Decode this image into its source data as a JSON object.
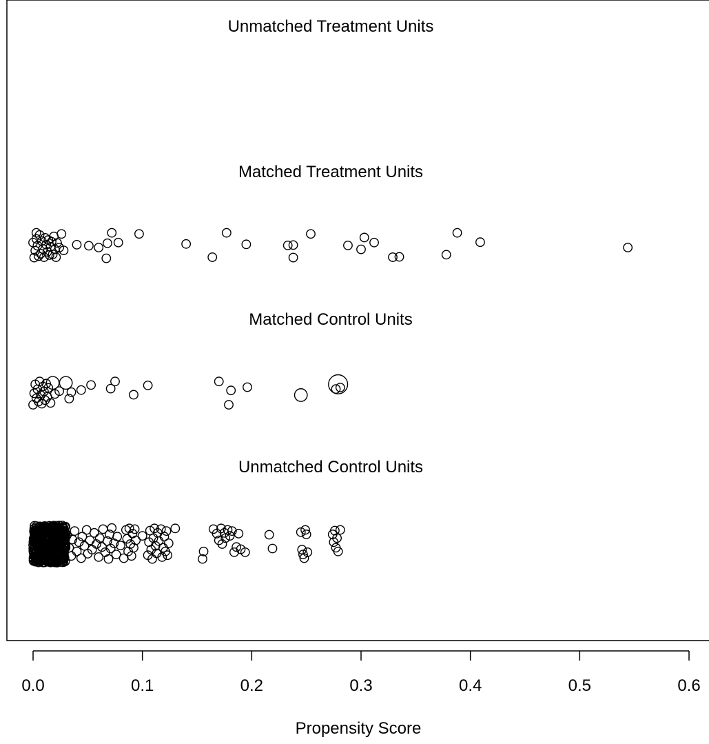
{
  "chart_data": {
    "type": "scatter",
    "title": "",
    "xlabel": "Propensity Score",
    "ylabel": "",
    "xlim": [
      0.0,
      0.6
    ],
    "xticks": [
      0.0,
      0.1,
      0.2,
      0.3,
      0.4,
      0.5,
      0.6
    ],
    "xtick_labels": [
      "0.0",
      "0.1",
      "0.2",
      "0.3",
      "0.4",
      "0.5",
      "0.6"
    ],
    "grid": false,
    "jittered_points": true,
    "point_style": "open-circle",
    "groups": [
      {
        "name": "Unmatched Treatment Units",
        "points": []
      },
      {
        "name": "Matched Treatment Units",
        "points": [
          {
            "x": 0.0,
            "y": 0.64,
            "w": 1
          },
          {
            "x": 0.001,
            "y": 0.22,
            "w": 1
          },
          {
            "x": 0.002,
            "y": 0.41,
            "w": 1
          },
          {
            "x": 0.003,
            "y": 0.74,
            "w": 1
          },
          {
            "x": 0.003,
            "y": 0.91,
            "w": 1
          },
          {
            "x": 0.004,
            "y": 0.55,
            "w": 1
          },
          {
            "x": 0.005,
            "y": 0.26,
            "w": 1
          },
          {
            "x": 0.006,
            "y": 0.85,
            "w": 1
          },
          {
            "x": 0.007,
            "y": 0.33,
            "w": 1
          },
          {
            "x": 0.008,
            "y": 0.68,
            "w": 1
          },
          {
            "x": 0.009,
            "y": 0.46,
            "w": 1
          },
          {
            "x": 0.01,
            "y": 0.23,
            "w": 1
          },
          {
            "x": 0.011,
            "y": 0.77,
            "w": 1
          },
          {
            "x": 0.012,
            "y": 0.58,
            "w": 1
          },
          {
            "x": 0.013,
            "y": 0.38,
            "w": 1
          },
          {
            "x": 0.014,
            "y": 0.71,
            "w": 1
          },
          {
            "x": 0.015,
            "y": 0.29,
            "w": 1
          },
          {
            "x": 0.016,
            "y": 0.52,
            "w": 1
          },
          {
            "x": 0.017,
            "y": 0.66,
            "w": 1
          },
          {
            "x": 0.018,
            "y": 0.31,
            "w": 1
          },
          {
            "x": 0.019,
            "y": 0.81,
            "w": 1
          },
          {
            "x": 0.02,
            "y": 0.45,
            "w": 1
          },
          {
            "x": 0.021,
            "y": 0.23,
            "w": 1
          },
          {
            "x": 0.022,
            "y": 0.63,
            "w": 1
          },
          {
            "x": 0.024,
            "y": 0.5,
            "w": 1
          },
          {
            "x": 0.026,
            "y": 0.88,
            "w": 1
          },
          {
            "x": 0.028,
            "y": 0.42,
            "w": 1
          },
          {
            "x": 0.04,
            "y": 0.58,
            "w": 1
          },
          {
            "x": 0.051,
            "y": 0.55,
            "w": 1
          },
          {
            "x": 0.06,
            "y": 0.5,
            "w": 1
          },
          {
            "x": 0.067,
            "y": 0.2,
            "w": 1
          },
          {
            "x": 0.068,
            "y": 0.62,
            "w": 1
          },
          {
            "x": 0.072,
            "y": 0.91,
            "w": 1
          },
          {
            "x": 0.078,
            "y": 0.64,
            "w": 1
          },
          {
            "x": 0.097,
            "y": 0.88,
            "w": 1
          },
          {
            "x": 0.14,
            "y": 0.6,
            "w": 1
          },
          {
            "x": 0.164,
            "y": 0.23,
            "w": 1
          },
          {
            "x": 0.177,
            "y": 0.91,
            "w": 1
          },
          {
            "x": 0.195,
            "y": 0.59,
            "w": 1
          },
          {
            "x": 0.233,
            "y": 0.56,
            "w": 1
          },
          {
            "x": 0.238,
            "y": 0.57,
            "w": 1
          },
          {
            "x": 0.238,
            "y": 0.22,
            "w": 1
          },
          {
            "x": 0.254,
            "y": 0.88,
            "w": 1
          },
          {
            "x": 0.288,
            "y": 0.56,
            "w": 1
          },
          {
            "x": 0.3,
            "y": 0.45,
            "w": 1
          },
          {
            "x": 0.303,
            "y": 0.78,
            "w": 1
          },
          {
            "x": 0.312,
            "y": 0.64,
            "w": 1
          },
          {
            "x": 0.329,
            "y": 0.23,
            "w": 1
          },
          {
            "x": 0.335,
            "y": 0.24,
            "w": 1
          },
          {
            "x": 0.378,
            "y": 0.3,
            "w": 1
          },
          {
            "x": 0.388,
            "y": 0.91,
            "w": 1
          },
          {
            "x": 0.409,
            "y": 0.65,
            "w": 1
          },
          {
            "x": 0.544,
            "y": 0.5,
            "w": 1
          }
        ]
      },
      {
        "name": "Matched Control Units",
        "points": [
          {
            "x": 0.0,
            "y": 0.25,
            "w": 1
          },
          {
            "x": 0.001,
            "y": 0.57,
            "w": 1
          },
          {
            "x": 0.002,
            "y": 0.82,
            "w": 1
          },
          {
            "x": 0.003,
            "y": 0.43,
            "w": 1
          },
          {
            "x": 0.004,
            "y": 0.68,
            "w": 1
          },
          {
            "x": 0.005,
            "y": 0.34,
            "w": 1
          },
          {
            "x": 0.006,
            "y": 0.9,
            "w": 1
          },
          {
            "x": 0.007,
            "y": 0.52,
            "w": 1
          },
          {
            "x": 0.008,
            "y": 0.28,
            "w": 1
          },
          {
            "x": 0.009,
            "y": 0.76,
            "w": 1
          },
          {
            "x": 0.01,
            "y": 0.62,
            "w": 1
          },
          {
            "x": 0.011,
            "y": 0.38,
            "w": 1
          },
          {
            "x": 0.012,
            "y": 0.84,
            "w": 1
          },
          {
            "x": 0.013,
            "y": 0.47,
            "w": 1
          },
          {
            "x": 0.014,
            "y": 0.72,
            "w": 1
          },
          {
            "x": 0.016,
            "y": 0.3,
            "w": 1
          },
          {
            "x": 0.018,
            "y": 0.86,
            "w": 2.2
          },
          {
            "x": 0.02,
            "y": 0.55,
            "w": 1
          },
          {
            "x": 0.024,
            "y": 0.63,
            "w": 1
          },
          {
            "x": 0.03,
            "y": 0.86,
            "w": 2.2
          },
          {
            "x": 0.033,
            "y": 0.42,
            "w": 1
          },
          {
            "x": 0.035,
            "y": 0.6,
            "w": 1
          },
          {
            "x": 0.044,
            "y": 0.66,
            "w": 1
          },
          {
            "x": 0.053,
            "y": 0.8,
            "w": 1
          },
          {
            "x": 0.071,
            "y": 0.7,
            "w": 1
          },
          {
            "x": 0.075,
            "y": 0.9,
            "w": 1
          },
          {
            "x": 0.092,
            "y": 0.53,
            "w": 1
          },
          {
            "x": 0.105,
            "y": 0.79,
            "w": 1
          },
          {
            "x": 0.17,
            "y": 0.9,
            "w": 1
          },
          {
            "x": 0.179,
            "y": 0.25,
            "w": 1
          },
          {
            "x": 0.181,
            "y": 0.65,
            "w": 1
          },
          {
            "x": 0.196,
            "y": 0.74,
            "w": 1
          },
          {
            "x": 0.245,
            "y": 0.52,
            "w": 2.2
          },
          {
            "x": 0.277,
            "y": 0.69,
            "w": 1
          },
          {
            "x": 0.279,
            "y": 0.82,
            "w": 5
          },
          {
            "x": 0.281,
            "y": 0.73,
            "w": 1
          }
        ]
      },
      {
        "name": "Unmatched Control Units",
        "dense_core": {
          "x_from": 0.0,
          "x_to": 0.03,
          "count": 500
        },
        "points": [
          {
            "x": 0.031,
            "y": 0.74,
            "w": 1
          },
          {
            "x": 0.033,
            "y": 0.4,
            "w": 1
          },
          {
            "x": 0.035,
            "y": 0.18,
            "w": 1
          },
          {
            "x": 0.036,
            "y": 0.62,
            "w": 1
          },
          {
            "x": 0.038,
            "y": 0.85,
            "w": 1
          },
          {
            "x": 0.04,
            "y": 0.3,
            "w": 1
          },
          {
            "x": 0.042,
            "y": 0.55,
            "w": 1
          },
          {
            "x": 0.044,
            "y": 0.12,
            "w": 1
          },
          {
            "x": 0.045,
            "y": 0.7,
            "w": 1
          },
          {
            "x": 0.047,
            "y": 0.45,
            "w": 1
          },
          {
            "x": 0.049,
            "y": 0.88,
            "w": 1
          },
          {
            "x": 0.05,
            "y": 0.24,
            "w": 1
          },
          {
            "x": 0.052,
            "y": 0.6,
            "w": 1
          },
          {
            "x": 0.054,
            "y": 0.35,
            "w": 1
          },
          {
            "x": 0.056,
            "y": 0.8,
            "w": 1
          },
          {
            "x": 0.058,
            "y": 0.5,
            "w": 1
          },
          {
            "x": 0.06,
            "y": 0.15,
            "w": 1
          },
          {
            "x": 0.061,
            "y": 0.66,
            "w": 1
          },
          {
            "x": 0.063,
            "y": 0.42,
            "w": 1
          },
          {
            "x": 0.064,
            "y": 0.9,
            "w": 1
          },
          {
            "x": 0.066,
            "y": 0.28,
            "w": 1
          },
          {
            "x": 0.068,
            "y": 0.58,
            "w": 1
          },
          {
            "x": 0.069,
            "y": 0.1,
            "w": 1
          },
          {
            "x": 0.07,
            "y": 0.76,
            "w": 1
          },
          {
            "x": 0.071,
            "y": 0.38,
            "w": 1
          },
          {
            "x": 0.072,
            "y": 0.93,
            "w": 1
          },
          {
            "x": 0.074,
            "y": 0.52,
            "w": 1
          },
          {
            "x": 0.076,
            "y": 0.22,
            "w": 1
          },
          {
            "x": 0.077,
            "y": 0.7,
            "w": 1
          },
          {
            "x": 0.08,
            "y": 0.46,
            "w": 1
          },
          {
            "x": 0.083,
            "y": 0.12,
            "w": 1
          },
          {
            "x": 0.085,
            "y": 0.88,
            "w": 1
          },
          {
            "x": 0.086,
            "y": 0.64,
            "w": 1
          },
          {
            "x": 0.087,
            "y": 0.3,
            "w": 1
          },
          {
            "x": 0.088,
            "y": 0.92,
            "w": 1
          },
          {
            "x": 0.089,
            "y": 0.5,
            "w": 1
          },
          {
            "x": 0.09,
            "y": 0.18,
            "w": 1
          },
          {
            "x": 0.091,
            "y": 0.78,
            "w": 1
          },
          {
            "x": 0.092,
            "y": 0.4,
            "w": 1
          },
          {
            "x": 0.093,
            "y": 0.9,
            "w": 1
          },
          {
            "x": 0.094,
            "y": 0.6,
            "w": 1
          },
          {
            "x": 0.1,
            "y": 0.72,
            "w": 1
          },
          {
            "x": 0.105,
            "y": 0.2,
            "w": 1
          },
          {
            "x": 0.106,
            "y": 0.55,
            "w": 1
          },
          {
            "x": 0.107,
            "y": 0.86,
            "w": 1
          },
          {
            "x": 0.108,
            "y": 0.35,
            "w": 1
          },
          {
            "x": 0.109,
            "y": 0.1,
            "w": 1
          },
          {
            "x": 0.11,
            "y": 0.66,
            "w": 1
          },
          {
            "x": 0.111,
            "y": 0.92,
            "w": 1
          },
          {
            "x": 0.112,
            "y": 0.45,
            "w": 1
          },
          {
            "x": 0.113,
            "y": 0.25,
            "w": 1
          },
          {
            "x": 0.114,
            "y": 0.8,
            "w": 1
          },
          {
            "x": 0.115,
            "y": 0.58,
            "w": 1
          },
          {
            "x": 0.117,
            "y": 0.9,
            "w": 1
          },
          {
            "x": 0.118,
            "y": 0.15,
            "w": 1
          },
          {
            "x": 0.119,
            "y": 0.4,
            "w": 1
          },
          {
            "x": 0.12,
            "y": 0.7,
            "w": 1
          },
          {
            "x": 0.121,
            "y": 0.3,
            "w": 1
          },
          {
            "x": 0.122,
            "y": 0.85,
            "w": 1
          },
          {
            "x": 0.123,
            "y": 0.2,
            "w": 1
          },
          {
            "x": 0.124,
            "y": 0.52,
            "w": 1
          },
          {
            "x": 0.13,
            "y": 0.92,
            "w": 1
          },
          {
            "x": 0.155,
            "y": 0.1,
            "w": 1
          },
          {
            "x": 0.156,
            "y": 0.3,
            "w": 1
          },
          {
            "x": 0.165,
            "y": 0.9,
            "w": 1
          },
          {
            "x": 0.168,
            "y": 0.78,
            "w": 1
          },
          {
            "x": 0.17,
            "y": 0.6,
            "w": 1
          },
          {
            "x": 0.172,
            "y": 0.92,
            "w": 1
          },
          {
            "x": 0.173,
            "y": 0.5,
            "w": 1
          },
          {
            "x": 0.175,
            "y": 0.8,
            "w": 1
          },
          {
            "x": 0.176,
            "y": 0.66,
            "w": 1
          },
          {
            "x": 0.178,
            "y": 0.88,
            "w": 1
          },
          {
            "x": 0.18,
            "y": 0.72,
            "w": 1
          },
          {
            "x": 0.182,
            "y": 0.85,
            "w": 1
          },
          {
            "x": 0.184,
            "y": 0.28,
            "w": 1
          },
          {
            "x": 0.186,
            "y": 0.42,
            "w": 1
          },
          {
            "x": 0.188,
            "y": 0.78,
            "w": 1
          },
          {
            "x": 0.19,
            "y": 0.36,
            "w": 1
          },
          {
            "x": 0.194,
            "y": 0.28,
            "w": 1
          },
          {
            "x": 0.216,
            "y": 0.75,
            "w": 1
          },
          {
            "x": 0.219,
            "y": 0.38,
            "w": 1
          },
          {
            "x": 0.245,
            "y": 0.82,
            "w": 1
          },
          {
            "x": 0.246,
            "y": 0.35,
            "w": 1
          },
          {
            "x": 0.247,
            "y": 0.22,
            "w": 1
          },
          {
            "x": 0.248,
            "y": 0.12,
            "w": 1
          },
          {
            "x": 0.249,
            "y": 0.88,
            "w": 1
          },
          {
            "x": 0.25,
            "y": 0.76,
            "w": 1
          },
          {
            "x": 0.251,
            "y": 0.28,
            "w": 1
          },
          {
            "x": 0.274,
            "y": 0.76,
            "w": 1
          },
          {
            "x": 0.275,
            "y": 0.55,
            "w": 1
          },
          {
            "x": 0.276,
            "y": 0.86,
            "w": 1
          },
          {
            "x": 0.277,
            "y": 0.4,
            "w": 1
          },
          {
            "x": 0.278,
            "y": 0.66,
            "w": 1
          },
          {
            "x": 0.279,
            "y": 0.3,
            "w": 1
          },
          {
            "x": 0.281,
            "y": 0.88,
            "w": 1
          }
        ]
      }
    ]
  }
}
